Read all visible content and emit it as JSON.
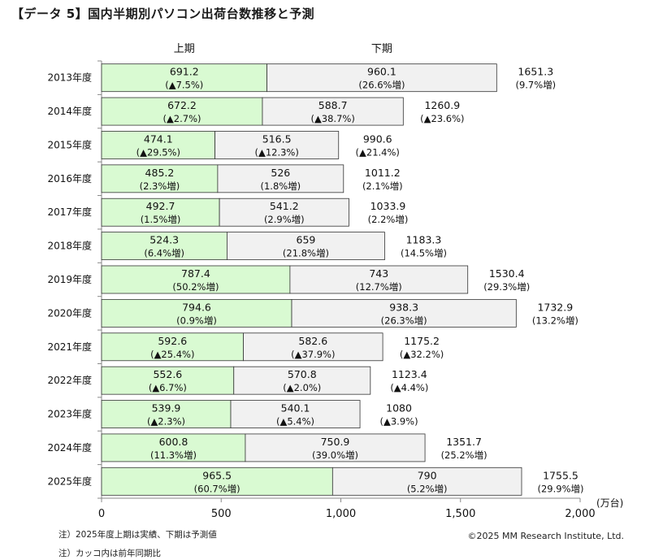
{
  "title": "【データ 5】国内半期別パソコン出荷台数推移と予測",
  "notes": [
    "注）2025年度上期は実績、下期は予測値",
    "注）カッコ内は前年同期比"
  ],
  "copyright": "©2025 MM Research Institute, Ltd.",
  "chart_data": {
    "type": "bar",
    "orientation": "horizontal",
    "stacked": true,
    "unit": "(万台)",
    "xlim": [
      0,
      2000
    ],
    "xticks": [
      {
        "value": 0,
        "label": "0"
      },
      {
        "value": 500,
        "label": "500"
      },
      {
        "value": 1000,
        "label": "1,000"
      },
      {
        "value": 1500,
        "label": "1,500"
      },
      {
        "value": 2000,
        "label": "2,000"
      }
    ],
    "categories": [
      "2013年度",
      "2014年度",
      "2015年度",
      "2016年度",
      "2017年度",
      "2018年度",
      "2019年度",
      "2020年度",
      "2021年度",
      "2022年度",
      "2023年度",
      "2024年度",
      "2025年度"
    ],
    "series": [
      {
        "name": "上期",
        "color": "#d9fad2",
        "values": [
          691.2,
          672.2,
          474.1,
          485.2,
          492.7,
          524.3,
          787.4,
          794.6,
          592.6,
          552.6,
          539.9,
          600.8,
          965.5
        ],
        "labels": [
          "691.2",
          "672.2",
          "474.1",
          "485.2",
          "492.7",
          "524.3",
          "787.4",
          "794.6",
          "592.6",
          "552.6",
          "539.9",
          "600.8",
          "965.5"
        ],
        "changes": [
          "(▲7.5%)",
          "(▲2.7%)",
          "(▲29.5%)",
          "(2.3%増)",
          "(1.5%増)",
          "(6.4%増)",
          "(50.2%増)",
          "(0.9%増)",
          "(▲25.4%)",
          "(▲6.7%)",
          "(▲2.3%)",
          "(11.3%増)",
          "(60.7%増)"
        ]
      },
      {
        "name": "下期",
        "color": "#f1f1f1",
        "values": [
          960.1,
          588.7,
          516.5,
          526,
          541.2,
          659,
          743,
          938.3,
          582.6,
          570.8,
          540.1,
          750.9,
          790
        ],
        "labels": [
          "960.1",
          "588.7",
          "516.5",
          "526",
          "541.2",
          "659",
          "743",
          "938.3",
          "582.6",
          "570.8",
          "540.1",
          "750.9",
          "790"
        ],
        "changes": [
          "(26.6%増)",
          "(▲38.7%)",
          "(▲12.3%)",
          "(1.8%増)",
          "(2.9%増)",
          "(21.8%増)",
          "(12.7%増)",
          "(26.3%増)",
          "(▲37.9%)",
          "(▲2.0%)",
          "(▲5.4%)",
          "(39.0%増)",
          "(5.2%増)"
        ]
      }
    ],
    "totals": {
      "values": [
        1651.3,
        1260.9,
        990.6,
        1011.2,
        1033.9,
        1183.3,
        1530.4,
        1732.9,
        1175.2,
        1123.4,
        1080,
        1351.7,
        1755.5
      ],
      "labels": [
        "1651.3",
        "1260.9",
        "990.6",
        "1011.2",
        "1033.9",
        "1183.3",
        "1530.4",
        "1732.9",
        "1175.2",
        "1123.4",
        "1080",
        "1351.7",
        "1755.5"
      ],
      "changes": [
        "(9.7%増)",
        "(▲23.6%)",
        "(▲21.4%)",
        "(2.1%増)",
        "(2.2%増)",
        "(14.5%増)",
        "(29.3%増)",
        "(13.2%増)",
        "(▲32.2%)",
        "(▲4.4%)",
        "(▲3.9%)",
        "(25.2%増)",
        "(29.9%増)"
      ]
    }
  }
}
